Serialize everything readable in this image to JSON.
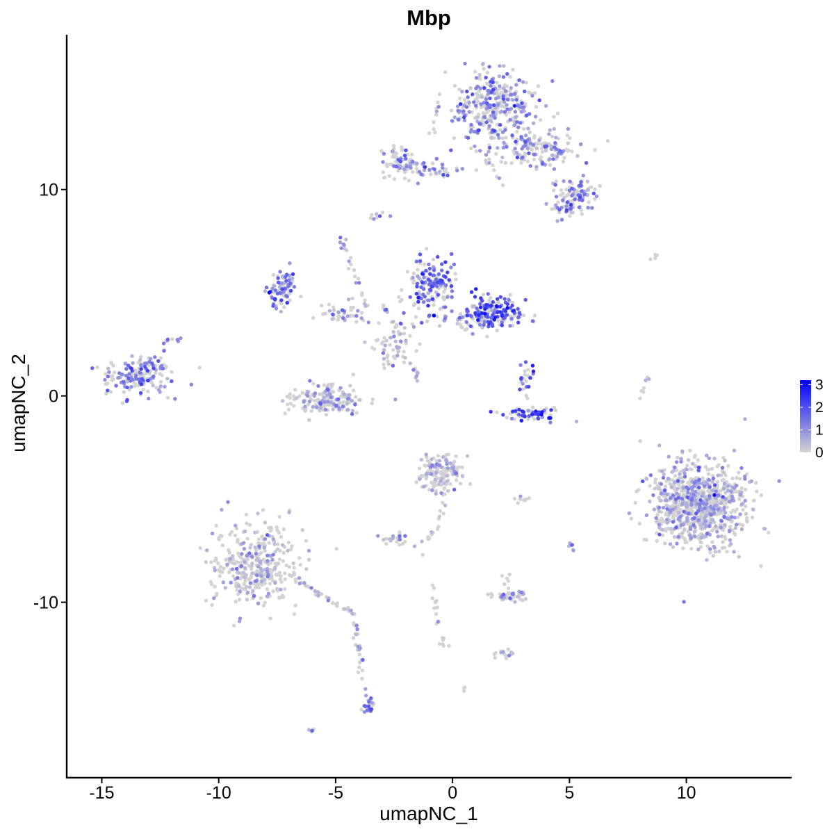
{
  "chart_data": {
    "type": "scatter",
    "title": "Mbp",
    "xlabel": "umapNC_1",
    "ylabel": "umapNC_2",
    "xlim": [
      -16.5,
      14.5
    ],
    "ylim": [
      -18.5,
      17.5
    ],
    "x_ticks": [
      -15,
      -10,
      -5,
      0,
      5,
      10
    ],
    "x_tick_labels": [
      "-15",
      "-10",
      "-5",
      "0",
      "5",
      "10"
    ],
    "y_ticks": [
      -10,
      0,
      10
    ],
    "y_tick_labels": [
      "-10",
      "0",
      "10"
    ],
    "grid": false,
    "legend": {
      "position": "right",
      "type": "colorbar",
      "labels": [
        "3",
        "2",
        "1",
        "0"
      ],
      "breaks": [
        3,
        2,
        1,
        0
      ],
      "range": [
        0,
        3.2
      ]
    },
    "colors": {
      "low": "#d3d3d3",
      "high": "#0000ff"
    },
    "expression_range": [
      0,
      3.2
    ],
    "clusters": [
      {
        "name": "",
        "cx": 1.8,
        "cy": 14.0,
        "sx": 1.1,
        "sy": 1.1,
        "n": 340,
        "mean_expr": 0.75
      },
      {
        "name": "",
        "cx": 3.8,
        "cy": 12.0,
        "sx": 1.2,
        "sy": 0.6,
        "n": 150,
        "mean_expr": 0.6
      },
      {
        "name": "",
        "cx": 5.3,
        "cy": 9.8,
        "sx": 0.6,
        "sy": 0.5,
        "n": 80,
        "mean_expr": 0.7
      },
      {
        "name": "",
        "cx": 4.9,
        "cy": 9.2,
        "sx": 0.5,
        "sy": 0.4,
        "n": 40,
        "mean_expr": 0.6
      },
      {
        "name": "",
        "cx": -2.2,
        "cy": 11.3,
        "sx": 0.6,
        "sy": 0.5,
        "n": 70,
        "mean_expr": 0.8
      },
      {
        "name": "",
        "cx": -0.8,
        "cy": 11.0,
        "sx": 1.1,
        "sy": 0.25,
        "n": 45,
        "mean_expr": 0.6
      },
      {
        "name": "",
        "cx": -7.3,
        "cy": 5.2,
        "sx": 0.4,
        "sy": 0.7,
        "n": 90,
        "mean_expr": 0.9
      },
      {
        "name": "",
        "cx": -0.9,
        "cy": 5.5,
        "sx": 0.7,
        "sy": 0.8,
        "n": 150,
        "mean_expr": 1.2
      },
      {
        "name": "",
        "cx": 1.8,
        "cy": 4.0,
        "sx": 0.8,
        "sy": 0.5,
        "n": 160,
        "mean_expr": 1.4
      },
      {
        "name": "",
        "cx": 0.2,
        "cy": 3.8,
        "sx": 1.3,
        "sy": 0.4,
        "n": 60,
        "mean_expr": 0.9
      },
      {
        "name": "",
        "cx": -4.5,
        "cy": 4.0,
        "sx": 0.9,
        "sy": 0.35,
        "n": 40,
        "mean_expr": 0.3
      },
      {
        "name": "",
        "cx": -2.5,
        "cy": 2.5,
        "sx": 0.7,
        "sy": 0.9,
        "n": 50,
        "mean_expr": 0.2
      },
      {
        "name": "",
        "cx": -13.4,
        "cy": 1.0,
        "sx": 0.9,
        "sy": 0.6,
        "n": 170,
        "mean_expr": 0.95
      },
      {
        "name": "",
        "cx": -5.4,
        "cy": -0.2,
        "sx": 1.1,
        "sy": 0.5,
        "n": 170,
        "mean_expr": 0.35
      },
      {
        "name": "",
        "cx": 3.4,
        "cy": -0.9,
        "sx": 0.8,
        "sy": 0.2,
        "n": 70,
        "mean_expr": 1.5
      },
      {
        "name": "",
        "cx": 3.2,
        "cy": 0.8,
        "sx": 0.3,
        "sy": 0.6,
        "n": 25,
        "mean_expr": 1.4
      },
      {
        "name": "",
        "cx": 10.5,
        "cy": -5.3,
        "sx": 1.4,
        "sy": 1.3,
        "n": 850,
        "mean_expr": 0.35
      },
      {
        "name": "",
        "cx": -0.5,
        "cy": -3.8,
        "sx": 0.6,
        "sy": 0.6,
        "n": 150,
        "mean_expr": 0.2
      },
      {
        "name": "",
        "cx": -8.4,
        "cy": -8.2,
        "sx": 1.2,
        "sy": 1.3,
        "n": 360,
        "mean_expr": 0.15
      },
      {
        "name": "",
        "cx": 2.4,
        "cy": -9.7,
        "sx": 0.6,
        "sy": 0.15,
        "n": 40,
        "mean_expr": 0.5
      },
      {
        "name": "",
        "cx": -2.3,
        "cy": -6.9,
        "sx": 0.4,
        "sy": 0.2,
        "n": 25,
        "mean_expr": 0.4
      },
      {
        "name": "",
        "cx": -3.6,
        "cy": -15.0,
        "sx": 0.2,
        "sy": 0.3,
        "n": 25,
        "mean_expr": 1.0
      },
      {
        "name": "",
        "cx": 2.3,
        "cy": -12.5,
        "sx": 0.3,
        "sy": 0.15,
        "n": 15,
        "mean_expr": 0.1
      },
      {
        "name": "",
        "cx": -3.2,
        "cy": 8.7,
        "sx": 0.2,
        "sy": 0.2,
        "n": 8,
        "mean_expr": 0.5
      },
      {
        "name": "",
        "cx": -4.7,
        "cy": 7.3,
        "sx": 0.15,
        "sy": 0.2,
        "n": 8,
        "mean_expr": 0.5
      },
      {
        "name": "",
        "cx": 8.7,
        "cy": 6.7,
        "sx": 0.3,
        "sy": 0.1,
        "n": 4,
        "mean_expr": 0.0
      },
      {
        "name": "",
        "cx": 3.0,
        "cy": -5.0,
        "sx": 0.3,
        "sy": 0.1,
        "n": 8,
        "mean_expr": 0.1
      },
      {
        "name": "",
        "cx": 5.1,
        "cy": -7.3,
        "sx": 0.1,
        "sy": 0.3,
        "n": 6,
        "mean_expr": 0.8
      },
      {
        "name": "",
        "cx": -6.0,
        "cy": -16.2,
        "sx": 0.1,
        "sy": 0.1,
        "n": 4,
        "mean_expr": 0.9
      },
      {
        "name": "",
        "cx": 0.5,
        "cy": -14.2,
        "sx": 0.1,
        "sy": 0.1,
        "n": 3,
        "mean_expr": 0.0
      }
    ],
    "trails": [
      {
        "from": [
          -0.3,
          -5.3
        ],
        "to": [
          -1.4,
          -8.0
        ],
        "n": 15,
        "mean_expr": 0.1
      },
      {
        "from": [
          -0.9,
          -9.0
        ],
        "to": [
          -0.4,
          -12.2
        ],
        "n": 20,
        "mean_expr": 0.05
      },
      {
        "from": [
          -7.2,
          -8.6
        ],
        "to": [
          -4.2,
          -10.6
        ],
        "n": 40,
        "mean_expr": 0.2
      },
      {
        "from": [
          -4.2,
          -10.8
        ],
        "to": [
          -3.8,
          -14.2
        ],
        "n": 25,
        "mean_expr": 0.3
      },
      {
        "from": [
          -0.8,
          12.2
        ],
        "to": [
          -0.6,
          14.8
        ],
        "n": 10,
        "mean_expr": 0.3
      },
      {
        "from": [
          -4.6,
          7.0
        ],
        "to": [
          -3.6,
          4.2
        ],
        "n": 15,
        "mean_expr": 0.3
      },
      {
        "from": [
          -2.2,
          2.2
        ],
        "to": [
          -1.4,
          0.8
        ],
        "n": 12,
        "mean_expr": 0.4
      },
      {
        "from": [
          8.0,
          -0.5
        ],
        "to": [
          8.3,
          0.9
        ],
        "n": 8,
        "mean_expr": 0.0
      },
      {
        "from": [
          2.3,
          -8.5
        ],
        "to": [
          2.3,
          -9.3
        ],
        "n": 6,
        "mean_expr": 0.5
      },
      {
        "from": [
          -12.4,
          2.6
        ],
        "to": [
          -11.6,
          2.8
        ],
        "n": 8,
        "mean_expr": 0.8
      },
      {
        "from": [
          -3.0,
          4.5
        ],
        "to": [
          -2.0,
          2.6
        ],
        "n": 14,
        "mean_expr": 0.2
      },
      {
        "from": [
          1.0,
          12.0
        ],
        "to": [
          2.4,
          10.0
        ],
        "n": 12,
        "mean_expr": 0.4
      }
    ],
    "highlights": [
      {
        "x": 11.2,
        "y": -4.8,
        "expr": 3.2
      }
    ]
  }
}
